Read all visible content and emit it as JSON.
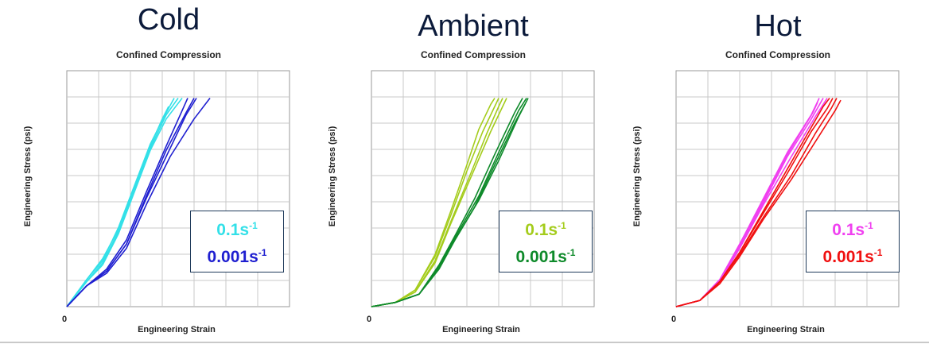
{
  "chart_data": [
    {
      "type": "line",
      "heading": "Cold",
      "title": "Confined Compression",
      "xlabel": "Engineering Strain",
      "ylabel": "Engineering Stress (psi)",
      "x_tick_labels": [
        "0"
      ],
      "grid": true,
      "legend_position": "bottom-right",
      "legend": [
        {
          "base": "0.1s",
          "exp": "-1",
          "color": "#33e0e8"
        },
        {
          "base": "0.001s",
          "exp": "-1",
          "color": "#1f1fd0"
        }
      ],
      "series": [
        {
          "color": "#33e0e8",
          "points": [
            [
              0,
              0
            ],
            [
              0.25,
              0.13
            ],
            [
              0.45,
              0.22
            ],
            [
              0.65,
              0.38
            ],
            [
              0.85,
              0.58
            ],
            [
              1.05,
              0.78
            ],
            [
              1.25,
              0.93
            ],
            [
              1.35,
              1.0
            ]
          ]
        },
        {
          "color": "#33e0e8",
          "points": [
            [
              0,
              0
            ],
            [
              0.25,
              0.12
            ],
            [
              0.45,
              0.21
            ],
            [
              0.65,
              0.36
            ],
            [
              0.85,
              0.56
            ],
            [
              1.05,
              0.76
            ],
            [
              1.25,
              0.92
            ],
            [
              1.4,
              1.0
            ]
          ]
        },
        {
          "color": "#33e0e8",
          "points": [
            [
              0,
              0
            ],
            [
              0.25,
              0.12
            ],
            [
              0.45,
              0.2
            ],
            [
              0.65,
              0.35
            ],
            [
              0.85,
              0.55
            ],
            [
              1.05,
              0.75
            ],
            [
              1.25,
              0.9
            ],
            [
              1.45,
              1.0
            ]
          ]
        },
        {
          "color": "#33e0e8",
          "points": [
            [
              0,
              0
            ],
            [
              0.25,
              0.13
            ],
            [
              0.45,
              0.23
            ],
            [
              0.65,
              0.37
            ],
            [
              0.85,
              0.57
            ],
            [
              1.05,
              0.77
            ],
            [
              1.2,
              0.9
            ],
            [
              1.28,
              0.96
            ]
          ]
        },
        {
          "color": "#1f1fd0",
          "points": [
            [
              0,
              0
            ],
            [
              0.25,
              0.1
            ],
            [
              0.5,
              0.17
            ],
            [
              0.75,
              0.3
            ],
            [
              1.0,
              0.53
            ],
            [
              1.25,
              0.75
            ],
            [
              1.5,
              0.93
            ],
            [
              1.6,
              1.0
            ]
          ]
        },
        {
          "color": "#1f1fd0",
          "points": [
            [
              0,
              0
            ],
            [
              0.25,
              0.1
            ],
            [
              0.5,
              0.18
            ],
            [
              0.75,
              0.32
            ],
            [
              1.0,
              0.55
            ],
            [
              1.25,
              0.77
            ],
            [
              1.45,
              0.94
            ],
            [
              1.52,
              1.0
            ]
          ]
        },
        {
          "color": "#1f1fd0",
          "points": [
            [
              0,
              0
            ],
            [
              0.25,
              0.1
            ],
            [
              0.5,
              0.16
            ],
            [
              0.75,
              0.28
            ],
            [
              1.0,
              0.49
            ],
            [
              1.3,
              0.72
            ],
            [
              1.6,
              0.9
            ],
            [
              1.8,
              1.0
            ]
          ]
        },
        {
          "color": "#1f1fd0",
          "points": [
            [
              0,
              0
            ],
            [
              0.25,
              0.1
            ],
            [
              0.5,
              0.17
            ],
            [
              0.75,
              0.3
            ],
            [
              1.0,
              0.52
            ],
            [
              1.3,
              0.76
            ],
            [
              1.5,
              0.92
            ],
            [
              1.63,
              1.0
            ]
          ]
        }
      ]
    },
    {
      "type": "line",
      "heading": "Ambient",
      "title": "Confined Compression",
      "xlabel": "Engineering Strain",
      "ylabel": "Engineering Stress (psi)",
      "x_tick_labels": [
        "0"
      ],
      "grid": true,
      "legend_position": "bottom-right",
      "legend": [
        {
          "base": "0.1s",
          "exp": "-1",
          "color": "#a4cc1c"
        },
        {
          "base": "0.001s",
          "exp": "-1",
          "color": "#0e8a2a"
        }
      ],
      "series": [
        {
          "color": "#a4cc1c",
          "points": [
            [
              0,
              0
            ],
            [
              0.3,
              0.02
            ],
            [
              0.55,
              0.08
            ],
            [
              0.8,
              0.25
            ],
            [
              1.0,
              0.46
            ],
            [
              1.2,
              0.68
            ],
            [
              1.35,
              0.85
            ],
            [
              1.5,
              0.97
            ],
            [
              1.55,
              1.0
            ]
          ]
        },
        {
          "color": "#a4cc1c",
          "points": [
            [
              0,
              0
            ],
            [
              0.3,
              0.02
            ],
            [
              0.55,
              0.08
            ],
            [
              0.8,
              0.24
            ],
            [
              1.0,
              0.44
            ],
            [
              1.2,
              0.65
            ],
            [
              1.4,
              0.84
            ],
            [
              1.55,
              0.96
            ],
            [
              1.6,
              1.0
            ]
          ]
        },
        {
          "color": "#a4cc1c",
          "points": [
            [
              0,
              0
            ],
            [
              0.3,
              0.02
            ],
            [
              0.55,
              0.07
            ],
            [
              0.8,
              0.22
            ],
            [
              1.0,
              0.41
            ],
            [
              1.25,
              0.64
            ],
            [
              1.45,
              0.83
            ],
            [
              1.6,
              0.96
            ],
            [
              1.65,
              1.0
            ]
          ]
        },
        {
          "color": "#a4cc1c",
          "points": [
            [
              0,
              0
            ],
            [
              0.3,
              0.02
            ],
            [
              0.55,
              0.07
            ],
            [
              0.8,
              0.21
            ],
            [
              1.0,
              0.4
            ],
            [
              1.25,
              0.62
            ],
            [
              1.5,
              0.84
            ],
            [
              1.65,
              0.96
            ],
            [
              1.7,
              1.0
            ]
          ]
        },
        {
          "color": "#0e8a2a",
          "points": [
            [
              0,
              0
            ],
            [
              0.3,
              0.02
            ],
            [
              0.6,
              0.06
            ],
            [
              0.85,
              0.2
            ],
            [
              1.05,
              0.34
            ],
            [
              1.3,
              0.52
            ],
            [
              1.55,
              0.73
            ],
            [
              1.8,
              0.93
            ],
            [
              1.9,
              1.0
            ]
          ]
        },
        {
          "color": "#0e8a2a",
          "points": [
            [
              0,
              0
            ],
            [
              0.3,
              0.02
            ],
            [
              0.6,
              0.06
            ],
            [
              0.85,
              0.19
            ],
            [
              1.05,
              0.33
            ],
            [
              1.35,
              0.53
            ],
            [
              1.6,
              0.74
            ],
            [
              1.85,
              0.94
            ],
            [
              1.95,
              1.0
            ]
          ]
        },
        {
          "color": "#0e8a2a",
          "points": [
            [
              0,
              0
            ],
            [
              0.3,
              0.02
            ],
            [
              0.6,
              0.06
            ],
            [
              0.85,
              0.18
            ],
            [
              1.05,
              0.32
            ],
            [
              1.35,
              0.51
            ],
            [
              1.6,
              0.7
            ],
            [
              1.85,
              0.91
            ],
            [
              1.97,
              1.0
            ]
          ]
        },
        {
          "color": "#0e8a2a",
          "points": [
            [
              0,
              0
            ],
            [
              0.3,
              0.02
            ],
            [
              0.6,
              0.06
            ],
            [
              0.85,
              0.19
            ],
            [
              1.05,
              0.32
            ],
            [
              1.3,
              0.48
            ],
            [
              1.55,
              0.68
            ],
            [
              1.8,
              0.88
            ],
            [
              1.93,
              0.97
            ]
          ]
        }
      ]
    },
    {
      "type": "line",
      "heading": "Hot",
      "title": "Confined Compression",
      "xlabel": "Engineering Strain",
      "ylabel": "Engineering Stress (psi)",
      "x_tick_labels": [
        "0"
      ],
      "grid": true,
      "legend_position": "bottom-right",
      "legend": [
        {
          "base": "0.1s",
          "exp": "-1",
          "color": "#f040f0"
        },
        {
          "base": "0.001s",
          "exp": "-1",
          "color": "#f01010"
        }
      ],
      "series": [
        {
          "color": "#f040f0",
          "points": [
            [
              0,
              0
            ],
            [
              0.3,
              0.03
            ],
            [
              0.55,
              0.13
            ],
            [
              0.8,
              0.3
            ],
            [
              1.1,
              0.52
            ],
            [
              1.4,
              0.74
            ],
            [
              1.7,
              0.92
            ],
            [
              1.8,
              1.0
            ]
          ]
        },
        {
          "color": "#f040f0",
          "points": [
            [
              0,
              0
            ],
            [
              0.3,
              0.03
            ],
            [
              0.55,
              0.13
            ],
            [
              0.8,
              0.29
            ],
            [
              1.1,
              0.5
            ],
            [
              1.4,
              0.72
            ],
            [
              1.7,
              0.9
            ],
            [
              1.85,
              1.0
            ]
          ]
        },
        {
          "color": "#f040f0",
          "points": [
            [
              0,
              0
            ],
            [
              0.3,
              0.03
            ],
            [
              0.55,
              0.12
            ],
            [
              0.8,
              0.28
            ],
            [
              1.1,
              0.49
            ],
            [
              1.45,
              0.72
            ],
            [
              1.75,
              0.91
            ],
            [
              1.9,
              1.0
            ]
          ]
        },
        {
          "color": "#f040f0",
          "points": [
            [
              0,
              0
            ],
            [
              0.3,
              0.03
            ],
            [
              0.55,
              0.13
            ],
            [
              0.8,
              0.3
            ],
            [
              1.1,
              0.51
            ],
            [
              1.4,
              0.73
            ],
            [
              1.72,
              0.93
            ],
            [
              1.78,
              0.98
            ]
          ]
        },
        {
          "color": "#f01010",
          "points": [
            [
              0,
              0
            ],
            [
              0.3,
              0.03
            ],
            [
              0.55,
              0.12
            ],
            [
              0.8,
              0.26
            ],
            [
              1.1,
              0.45
            ],
            [
              1.4,
              0.64
            ],
            [
              1.7,
              0.84
            ],
            [
              1.9,
              0.95
            ],
            [
              1.97,
              1.0
            ]
          ]
        },
        {
          "color": "#f01010",
          "points": [
            [
              0,
              0
            ],
            [
              0.3,
              0.03
            ],
            [
              0.55,
              0.12
            ],
            [
              0.8,
              0.25
            ],
            [
              1.1,
              0.43
            ],
            [
              1.45,
              0.63
            ],
            [
              1.75,
              0.83
            ],
            [
              1.95,
              0.95
            ],
            [
              2.02,
              1.0
            ]
          ]
        },
        {
          "color": "#f01010",
          "points": [
            [
              0,
              0
            ],
            [
              0.3,
              0.03
            ],
            [
              0.55,
              0.12
            ],
            [
              0.8,
              0.26
            ],
            [
              1.1,
              0.46
            ],
            [
              1.4,
              0.66
            ],
            [
              1.7,
              0.86
            ],
            [
              1.85,
              0.96
            ],
            [
              1.93,
              1.0
            ]
          ]
        },
        {
          "color": "#f01010",
          "points": [
            [
              0,
              0
            ],
            [
              0.3,
              0.03
            ],
            [
              0.55,
              0.11
            ],
            [
              0.8,
              0.24
            ],
            [
              1.1,
              0.42
            ],
            [
              1.45,
              0.61
            ],
            [
              1.8,
              0.82
            ],
            [
              2.0,
              0.94
            ],
            [
              2.07,
              0.99
            ]
          ]
        }
      ]
    }
  ]
}
